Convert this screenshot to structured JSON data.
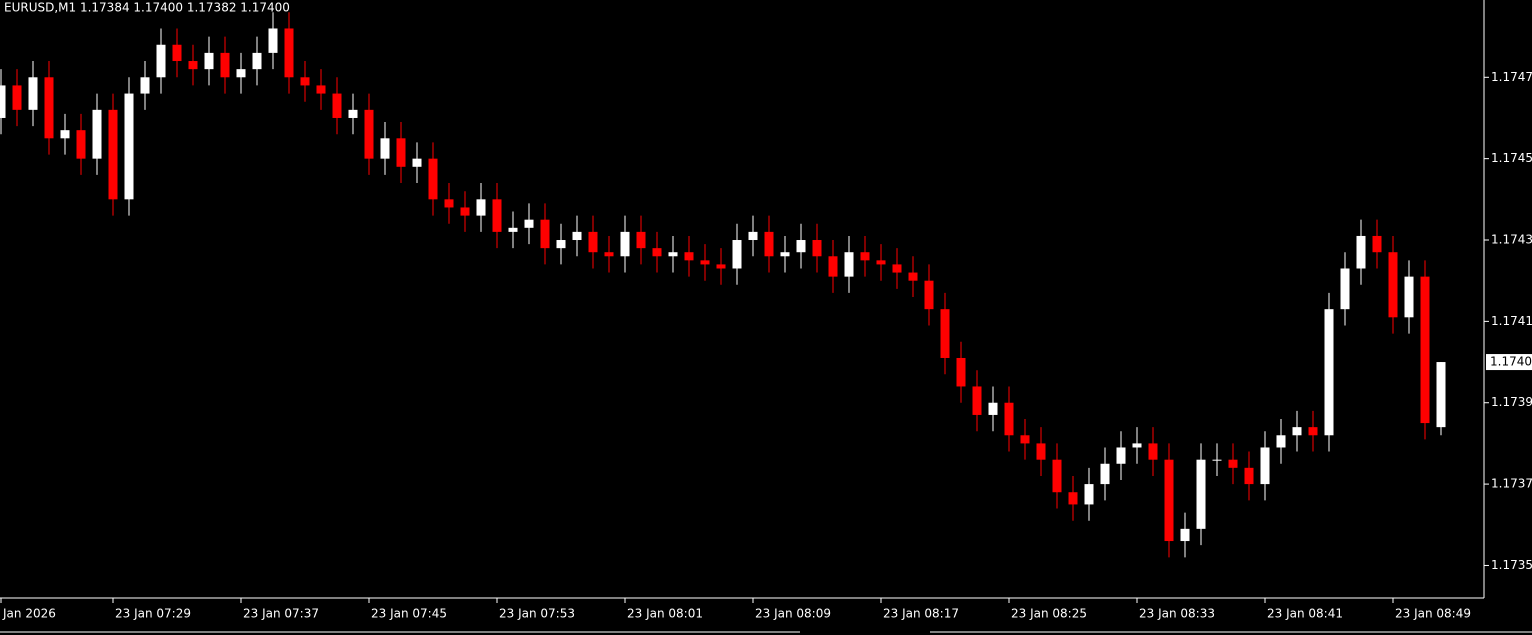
{
  "chart_data": {
    "type": "candlestick",
    "title": "EURUSD,M1  1.17384 1.17400 1.17382 1.17400",
    "categories": [
      "Jan 2026",
      null,
      null,
      null,
      null,
      null,
      null,
      "23 Jan 07:29",
      null,
      null,
      null,
      null,
      null,
      null,
      null,
      "23 Jan 07:37",
      null,
      null,
      null,
      null,
      null,
      null,
      null,
      "23 Jan 07:45",
      null,
      null,
      null,
      null,
      null,
      null,
      null,
      "23 Jan 07:53",
      null,
      null,
      null,
      null,
      null,
      null,
      null,
      "23 Jan 08:01",
      null,
      null,
      null,
      null,
      null,
      null,
      null,
      "23 Jan 08:09",
      null,
      null,
      null,
      null,
      null,
      null,
      null,
      "23 Jan 08:17",
      null,
      null,
      null,
      null,
      null,
      null,
      null,
      "23 Jan 08:25",
      null,
      null,
      null,
      null,
      null,
      null,
      null,
      "23 Jan 08:33",
      null,
      null,
      null,
      null,
      null,
      null,
      null,
      "23 Jan 08:41",
      null,
      null,
      null,
      null,
      null,
      null,
      null,
      "23 Jan 08:49",
      null,
      null,
      null
    ],
    "open": [
      1.1746,
      1.17468,
      1.17462,
      1.1747,
      1.17455,
      1.17457,
      1.1745,
      1.17462,
      1.1744,
      1.17466,
      1.1747,
      1.17478,
      1.17474,
      1.17472,
      1.17476,
      1.1747,
      1.17472,
      1.17476,
      1.17482,
      1.1747,
      1.17468,
      1.17466,
      1.1746,
      1.17462,
      1.1745,
      1.17455,
      1.17448,
      1.1745,
      1.1744,
      1.17438,
      1.17436,
      1.1744,
      1.17432,
      1.17433,
      1.17435,
      1.17428,
      1.1743,
      1.17432,
      1.17427,
      1.17426,
      1.17432,
      1.17428,
      1.17426,
      1.17427,
      1.17425,
      1.17424,
      1.17423,
      1.1743,
      1.17432,
      1.17426,
      1.17427,
      1.1743,
      1.17426,
      1.17421,
      1.17427,
      1.17425,
      1.17424,
      1.17422,
      1.1742,
      1.17413,
      1.17401,
      1.17394,
      1.17387,
      1.1739,
      1.17382,
      1.1738,
      1.17376,
      1.17368,
      1.17365,
      1.1737,
      1.17375,
      1.17379,
      1.1738,
      1.17376,
      1.17356,
      1.17359,
      1.17376,
      1.17376,
      1.17374,
      1.1737,
      1.17379,
      1.17382,
      1.17384,
      1.17382,
      1.17413,
      1.17423,
      1.17431,
      1.17427,
      1.17411,
      1.17421,
      1.17384
    ],
    "high": [
      1.17472,
      1.17472,
      1.17474,
      1.17474,
      1.17461,
      1.17461,
      1.17466,
      1.17466,
      1.1747,
      1.17474,
      1.17482,
      1.17482,
      1.17478,
      1.1748,
      1.1748,
      1.17476,
      1.1748,
      1.17486,
      1.17486,
      1.17474,
      1.17472,
      1.1747,
      1.17466,
      1.17466,
      1.17459,
      1.17459,
      1.17454,
      1.17454,
      1.17444,
      1.17442,
      1.17444,
      1.17444,
      1.17437,
      1.17439,
      1.17439,
      1.17434,
      1.17436,
      1.17436,
      1.17431,
      1.17436,
      1.17436,
      1.17432,
      1.17431,
      1.17431,
      1.17429,
      1.17428,
      1.17434,
      1.17436,
      1.17436,
      1.17431,
      1.17434,
      1.17434,
      1.1743,
      1.17431,
      1.17431,
      1.17429,
      1.17428,
      1.17426,
      1.17424,
      1.17417,
      1.17405,
      1.17398,
      1.17394,
      1.17394,
      1.17386,
      1.17384,
      1.1738,
      1.17372,
      1.17374,
      1.17379,
      1.17383,
      1.17384,
      1.17384,
      1.1738,
      1.17363,
      1.1738,
      1.1738,
      1.1738,
      1.17378,
      1.17383,
      1.17386,
      1.17388,
      1.17388,
      1.17417,
      1.17427,
      1.17435,
      1.17435,
      1.17431,
      1.17425,
      1.17425,
      1.174
    ],
    "low": [
      1.17456,
      1.17458,
      1.17458,
      1.17451,
      1.17451,
      1.17446,
      1.17446,
      1.17436,
      1.17436,
      1.17462,
      1.17466,
      1.1747,
      1.17468,
      1.17468,
      1.17466,
      1.17466,
      1.17468,
      1.17472,
      1.17466,
      1.17464,
      1.17462,
      1.17456,
      1.17456,
      1.17446,
      1.17446,
      1.17444,
      1.17444,
      1.17436,
      1.17434,
      1.17432,
      1.17432,
      1.17428,
      1.17428,
      1.17429,
      1.17424,
      1.17424,
      1.17426,
      1.17423,
      1.17422,
      1.17422,
      1.17424,
      1.17422,
      1.17422,
      1.17421,
      1.1742,
      1.17419,
      1.17419,
      1.17426,
      1.17422,
      1.17422,
      1.17423,
      1.17422,
      1.17417,
      1.17417,
      1.17421,
      1.1742,
      1.17418,
      1.17416,
      1.17409,
      1.17397,
      1.1739,
      1.17383,
      1.17383,
      1.17378,
      1.17376,
      1.17372,
      1.17364,
      1.17361,
      1.17361,
      1.17366,
      1.17371,
      1.17375,
      1.17372,
      1.17352,
      1.17352,
      1.17355,
      1.17372,
      1.1737,
      1.17366,
      1.17366,
      1.17375,
      1.17378,
      1.17378,
      1.17378,
      1.17409,
      1.17419,
      1.17423,
      1.17407,
      1.17407,
      1.17381,
      1.17382
    ],
    "close": [
      1.17468,
      1.17462,
      1.1747,
      1.17455,
      1.17457,
      1.1745,
      1.17462,
      1.1744,
      1.17466,
      1.1747,
      1.17478,
      1.17474,
      1.17472,
      1.17476,
      1.1747,
      1.17472,
      1.17476,
      1.17482,
      1.1747,
      1.17468,
      1.17466,
      1.1746,
      1.17462,
      1.1745,
      1.17455,
      1.17448,
      1.1745,
      1.1744,
      1.17438,
      1.17436,
      1.1744,
      1.17432,
      1.17433,
      1.17435,
      1.17428,
      1.1743,
      1.17432,
      1.17427,
      1.17426,
      1.17432,
      1.17428,
      1.17426,
      1.17427,
      1.17425,
      1.17424,
      1.17423,
      1.1743,
      1.17432,
      1.17426,
      1.17427,
      1.1743,
      1.17426,
      1.17421,
      1.17427,
      1.17425,
      1.17424,
      1.17422,
      1.1742,
      1.17413,
      1.17401,
      1.17394,
      1.17387,
      1.1739,
      1.17382,
      1.1738,
      1.17376,
      1.17368,
      1.17365,
      1.1737,
      1.17375,
      1.17379,
      1.1738,
      1.17376,
      1.17356,
      1.17359,
      1.17376,
      1.17376,
      1.17374,
      1.1737,
      1.17379,
      1.17382,
      1.17384,
      1.17382,
      1.17413,
      1.17423,
      1.17431,
      1.17427,
      1.17411,
      1.17421,
      1.17385,
      1.174
    ],
    "up_color": "#ffffff",
    "down_color": "#ff0000",
    "ylim": [
      1.17342,
      1.17489
    ],
    "yticks": [
      1.1735,
      1.1737,
      1.1739,
      1.1741,
      1.1743,
      1.1745,
      1.1747
    ],
    "current_price": {
      "value": 1.174,
      "label": "1.17400"
    }
  }
}
